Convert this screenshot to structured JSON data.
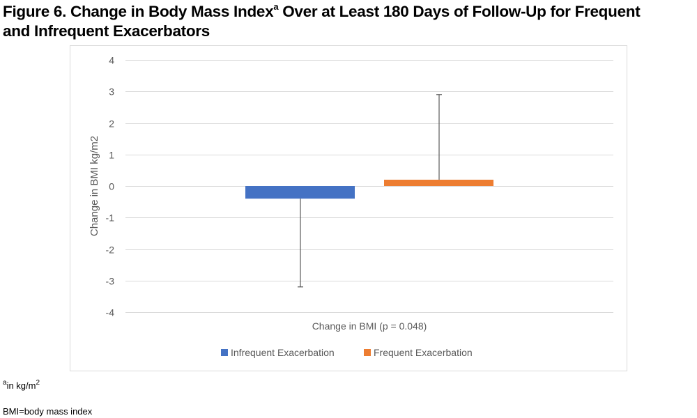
{
  "title": {
    "line1_prefix": "Figure 6. Change in Body Mass Index",
    "line1_sup": "a",
    "line1_suffix": " Over at Least 180 Days of Follow-Up for Frequent",
    "line2": "and Infrequent Exacerbators"
  },
  "footnotes": {
    "unit_sup": "a",
    "unit_text": "in kg/m",
    "unit_power": "2",
    "abbrev": "BMI=body mass index"
  },
  "chart_data": {
    "type": "bar",
    "title": "",
    "xlabel": "Change in BMI (p = 0.048)",
    "ylabel": "Change in BMI kg/m2",
    "ylim": [
      -4,
      4
    ],
    "yticks": [
      4,
      3,
      2,
      1,
      0,
      -1,
      -2,
      -3,
      -4
    ],
    "grid": true,
    "legend_position": "bottom",
    "categories": [
      "Change in BMI (p = 0.048)"
    ],
    "series": [
      {
        "name": "Infrequent Exacerbation",
        "color": "#4472C4",
        "values": [
          -0.4
        ],
        "error": {
          "direction": "minus",
          "end": -3.2
        }
      },
      {
        "name": "Frequent Exacerbation",
        "color": "#ED7D31",
        "values": [
          0.2
        ],
        "error": {
          "direction": "plus",
          "end": 2.9
        }
      }
    ]
  }
}
